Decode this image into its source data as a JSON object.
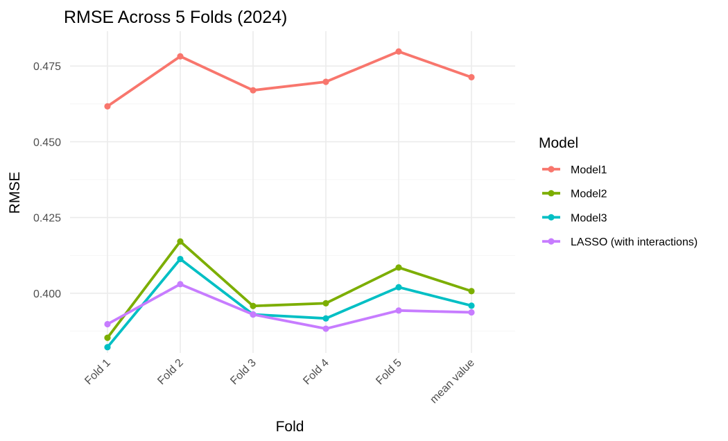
{
  "chart_data": {
    "type": "line",
    "title": "RMSE Across 5 Folds (2024)",
    "xlabel": "Fold",
    "ylabel": "RMSE",
    "categories": [
      "Fold 1",
      "Fold 2",
      "Fold 3",
      "Fold 4",
      "Fold 5",
      "mean value"
    ],
    "ylim": [
      0.3803,
      0.4865
    ],
    "yticks": [
      0.4,
      0.425,
      0.45,
      0.475
    ],
    "ytick_labels": [
      "0.400",
      "0.425",
      "0.450",
      "0.475"
    ],
    "grid": true,
    "legend": {
      "title": "Model",
      "position": "right"
    },
    "series": [
      {
        "name": "Model1",
        "color": "#F8766D",
        "values": [
          0.4617,
          0.4782,
          0.467,
          0.4698,
          0.4798,
          0.4713
        ]
      },
      {
        "name": "Model2",
        "color": "#7CAE00",
        "values": [
          0.3853,
          0.4171,
          0.3958,
          0.3967,
          0.4085,
          0.4007
        ]
      },
      {
        "name": "Model3",
        "color": "#00BFC4",
        "values": [
          0.3822,
          0.4113,
          0.393,
          0.3917,
          0.402,
          0.3959
        ]
      },
      {
        "name": "LASSO (with interactions)",
        "color": "#C77CFF",
        "values": [
          0.3898,
          0.403,
          0.393,
          0.3883,
          0.3943,
          0.3937
        ]
      }
    ]
  }
}
